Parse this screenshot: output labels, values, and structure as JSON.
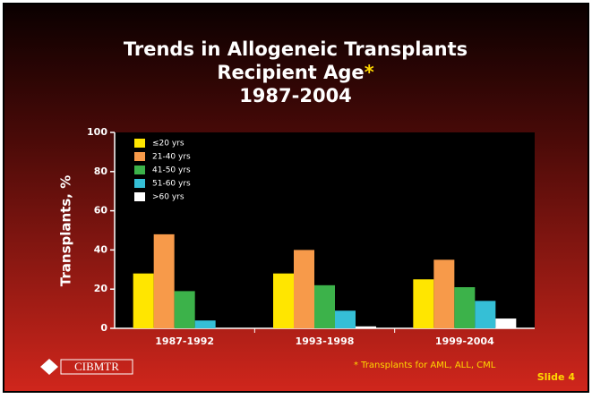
{
  "chart_data": {
    "type": "bar",
    "title_lines": [
      "Trends in Allogeneic Transplants",
      "Recipient Age",
      "1987-2004"
    ],
    "title_marker": "*",
    "ylabel": "Transplants, %",
    "categories": [
      "1987-1992",
      "1993-1998",
      "1999-2004"
    ],
    "series": [
      {
        "name": "≤20 yrs",
        "color": "#ffe600",
        "values": [
          28,
          28,
          25
        ]
      },
      {
        "name": "21-40 yrs",
        "color": "#f79a4a",
        "values": [
          48,
          40,
          35
        ]
      },
      {
        "name": "41-50 yrs",
        "color": "#3cb24a",
        "values": [
          19,
          22,
          21
        ]
      },
      {
        "name": "51-60 yrs",
        "color": "#35bfd6",
        "values": [
          4,
          9,
          14
        ]
      },
      {
        "name": ">60 yrs",
        "color": "#ffffff",
        "values": [
          0,
          1,
          5
        ]
      }
    ],
    "ylim": [
      0,
      100
    ],
    "yticks": [
      0,
      20,
      40,
      60,
      80,
      100
    ],
    "legend": "upper-left",
    "footnote": "* Transplants for AML, ALL, CML",
    "logo": "CIBMTR",
    "slide_label": "Slide 4"
  }
}
